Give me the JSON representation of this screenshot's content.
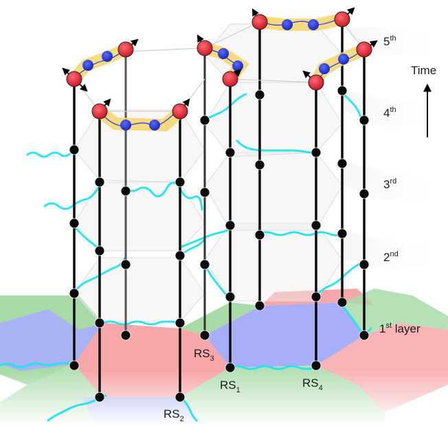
{
  "time_label": "Time",
  "layers": [
    {
      "num": "1",
      "sup": "st",
      "suffix": " layer"
    },
    {
      "num": "2",
      "sup": "nd",
      "suffix": ""
    },
    {
      "num": "3",
      "sup": "rd",
      "suffix": ""
    },
    {
      "num": "4",
      "sup": "th",
      "suffix": ""
    },
    {
      "num": "5",
      "sup": "th",
      "suffix": ""
    }
  ],
  "stations": [
    {
      "main": "RS",
      "sub": "1"
    },
    {
      "main": "RS",
      "sub": "2"
    },
    {
      "main": "RS",
      "sub": "3"
    },
    {
      "main": "RS",
      "sub": "4"
    }
  ],
  "colors": {
    "region_red": "#f7a7a9",
    "region_blue": "#a9aefb",
    "region_green": "#a9dba9",
    "photon_link": "#22e3ee",
    "node": "#0b0b0b",
    "qubit_red": "#e8182a",
    "qubit_blue": "#1f2fe0",
    "entangle_band": "#f5d56b",
    "layer_plane": "#eeeeee"
  },
  "icons": [
    "spin-arrow-icon",
    "photon-wave-icon",
    "qubit-icon"
  ]
}
